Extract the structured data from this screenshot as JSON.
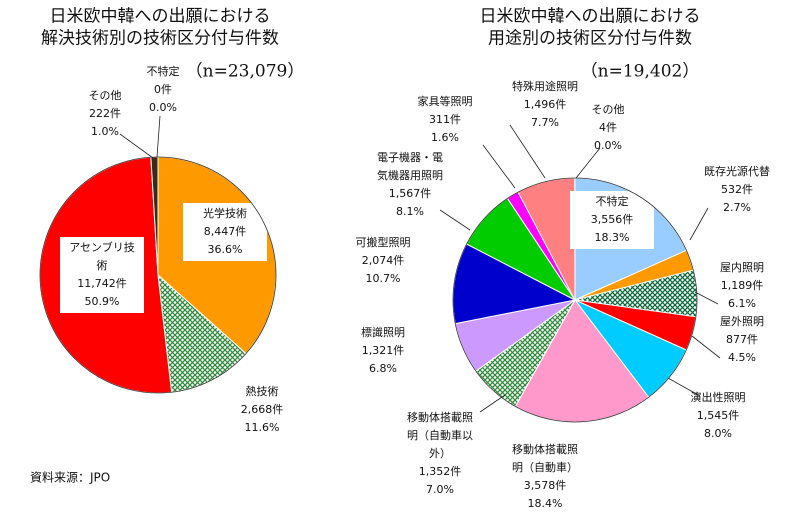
{
  "chart_data": [
    {
      "type": "pie",
      "title": [
        "日米欧中韓への出願における",
        "解決技術別の技術区分付与件数"
      ],
      "subtitle": "（n=23,079）",
      "categories": [
        [
          "光学技術"
        ],
        [
          "熱技術"
        ],
        [
          "アセンブリ技",
          "術"
        ],
        [
          "その他"
        ],
        [
          "不特定"
        ]
      ],
      "values": [
        8447,
        2668,
        11742,
        222,
        0
      ],
      "value_labels": [
        "8,447件",
        "2,668件",
        "11,742件",
        "222件",
        "0件"
      ],
      "percent": [
        36.6,
        11.6,
        50.9,
        1.0,
        0.0
      ],
      "percent_labels": [
        "36.6%",
        "11.6%",
        "50.9%",
        "1.0%",
        "0.0%"
      ],
      "colors": [
        "#ff9900",
        "#2e8b3a",
        "#ff0000",
        "#3a2a1a",
        "#999999"
      ],
      "hatched": [
        false,
        true,
        false,
        false,
        false
      ]
    },
    {
      "type": "pie",
      "title": [
        "日米欧中韓への出願における",
        "用途別の技術区分付与件数"
      ],
      "subtitle": "（n=19,402）",
      "categories": [
        [
          "不特定"
        ],
        [
          "既存光源代替"
        ],
        [
          "屋内照明"
        ],
        [
          "屋外照明"
        ],
        [
          "演出性照明"
        ],
        [
          "移動体搭載照",
          "明（自動車）"
        ],
        [
          "移動体搭載照",
          "明（自動車以",
          "外）"
        ],
        [
          "標識照明"
        ],
        [
          "可搬型照明"
        ],
        [
          "電子機器・電",
          "気機器用照明"
        ],
        [
          "家具等照明"
        ],
        [
          "特殊用途照明"
        ],
        [
          "その他"
        ]
      ],
      "values": [
        3556,
        532,
        1189,
        877,
        1545,
        3578,
        1352,
        1321,
        2074,
        1567,
        311,
        1496,
        4
      ],
      "value_labels": [
        "3,556件",
        "532件",
        "1,189件",
        "877件",
        "1,545件",
        "3,578件",
        "1,352件",
        "1,321件",
        "2,074件",
        "1,567件",
        "311件",
        "1,496件",
        "4件"
      ],
      "percent": [
        18.3,
        2.7,
        6.1,
        4.5,
        8.0,
        18.4,
        7.0,
        6.8,
        10.7,
        8.1,
        1.6,
        7.7,
        0.0
      ],
      "percent_labels": [
        "18.3%",
        "2.7%",
        "6.1%",
        "4.5%",
        "8.0%",
        "18.4%",
        "7.0%",
        "6.8%",
        "10.7%",
        "8.1%",
        "1.6%",
        "7.7%",
        "0.0%"
      ],
      "colors": [
        "#99ccff",
        "#ff9900",
        "#0b6b3a",
        "#ff0000",
        "#00ccff",
        "#ff99cc",
        "#2e8b3a",
        "#cc99ff",
        "#0000cc",
        "#00cc00",
        "#ff00ff",
        "#ff8080",
        "#666666"
      ],
      "hatched": [
        false,
        false,
        true,
        false,
        false,
        false,
        true,
        false,
        false,
        false,
        false,
        false,
        false
      ]
    }
  ],
  "source": "資料来源：JPO"
}
